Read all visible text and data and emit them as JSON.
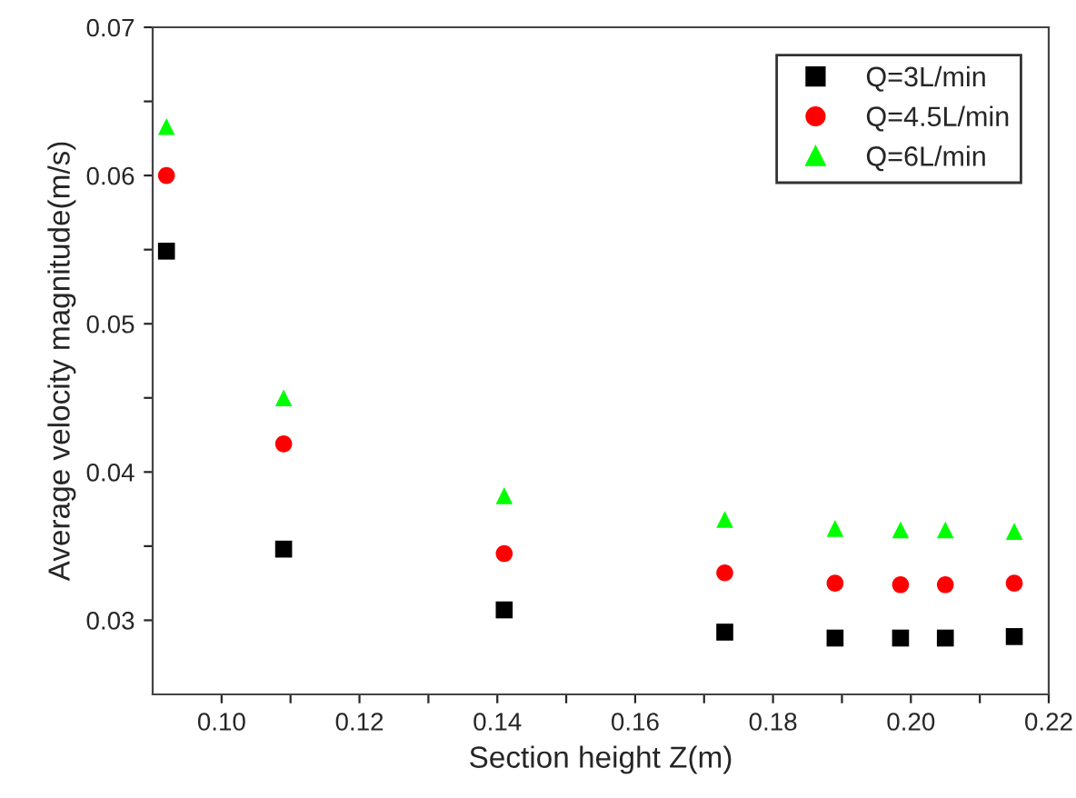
{
  "chart_data": {
    "type": "scatter",
    "xlabel": "Section height Z(m)",
    "ylabel": "Average velocity magnitude(m/s)",
    "x": [
      0.092,
      0.109,
      0.141,
      0.173,
      0.189,
      0.1985,
      0.205,
      0.215
    ],
    "series": [
      {
        "name": "Q=3L/min",
        "color": "#000000",
        "marker": "square",
        "values": [
          0.0549,
          0.0348,
          0.0307,
          0.0292,
          0.0288,
          0.0288,
          0.0288,
          0.0289
        ]
      },
      {
        "name": "Q=4.5L/min",
        "color": "#ff0000",
        "marker": "circle",
        "values": [
          0.06,
          0.0419,
          0.0345,
          0.0332,
          0.0325,
          0.0324,
          0.0324,
          0.0325
        ]
      },
      {
        "name": "Q=6L/min",
        "color": "#00ff00",
        "marker": "triangle",
        "values": [
          0.0633,
          0.045,
          0.0384,
          0.0368,
          0.0362,
          0.0361,
          0.0361,
          0.036
        ]
      }
    ],
    "xlim": [
      0.09,
      0.22
    ],
    "ylim": [
      0.025,
      0.07
    ],
    "xticks": [
      {
        "value": 0.1,
        "label": "0.10"
      },
      {
        "value": 0.11,
        "label": null
      },
      {
        "value": 0.12,
        "label": "0.12"
      },
      {
        "value": 0.13,
        "label": null
      },
      {
        "value": 0.14,
        "label": "0.14"
      },
      {
        "value": 0.15,
        "label": null
      },
      {
        "value": 0.16,
        "label": "0.16"
      },
      {
        "value": 0.17,
        "label": null
      },
      {
        "value": 0.18,
        "label": "0.18"
      },
      {
        "value": 0.19,
        "label": null
      },
      {
        "value": 0.2,
        "label": "0.20"
      },
      {
        "value": 0.21,
        "label": null
      },
      {
        "value": 0.22,
        "label": "0.22"
      }
    ],
    "yticks": [
      {
        "value": 0.03,
        "label": "0.03"
      },
      {
        "value": 0.035,
        "label": null
      },
      {
        "value": 0.04,
        "label": "0.04"
      },
      {
        "value": 0.045,
        "label": null
      },
      {
        "value": 0.05,
        "label": "0.05"
      },
      {
        "value": 0.055,
        "label": null
      },
      {
        "value": 0.06,
        "label": "0.06"
      },
      {
        "value": 0.065,
        "label": null
      },
      {
        "value": 0.07,
        "label": "0.07"
      }
    ],
    "grid": false,
    "legend": "top right"
  }
}
